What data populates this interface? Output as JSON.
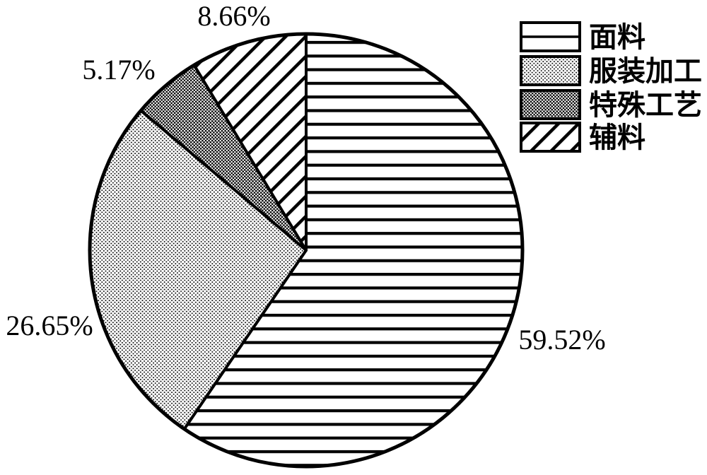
{
  "chart_data": {
    "type": "pie",
    "title": "",
    "labels": [
      "面料",
      "服装加工",
      "特殊工艺",
      "辅料"
    ],
    "values": [
      59.52,
      26.65,
      5.17,
      8.66
    ],
    "value_labels": [
      "59.52%",
      "26.65%",
      "5.17%",
      "8.66%"
    ],
    "patterns": [
      "horizontal-lines",
      "light-dots",
      "dense-dots",
      "diagonal-stripes"
    ],
    "start_angle_deg": 0,
    "direction": "clockwise",
    "legend_position": "top-right",
    "colors": {
      "stroke": "#000000",
      "background": "#ffffff"
    }
  },
  "legend": {
    "items": [
      {
        "label": "面料",
        "pattern": "horizontal-lines"
      },
      {
        "label": "服装加工",
        "pattern": "light-dots"
      },
      {
        "label": "特殊工艺",
        "pattern": "dense-dots"
      },
      {
        "label": "辅料",
        "pattern": "diagonal-stripes"
      }
    ]
  }
}
